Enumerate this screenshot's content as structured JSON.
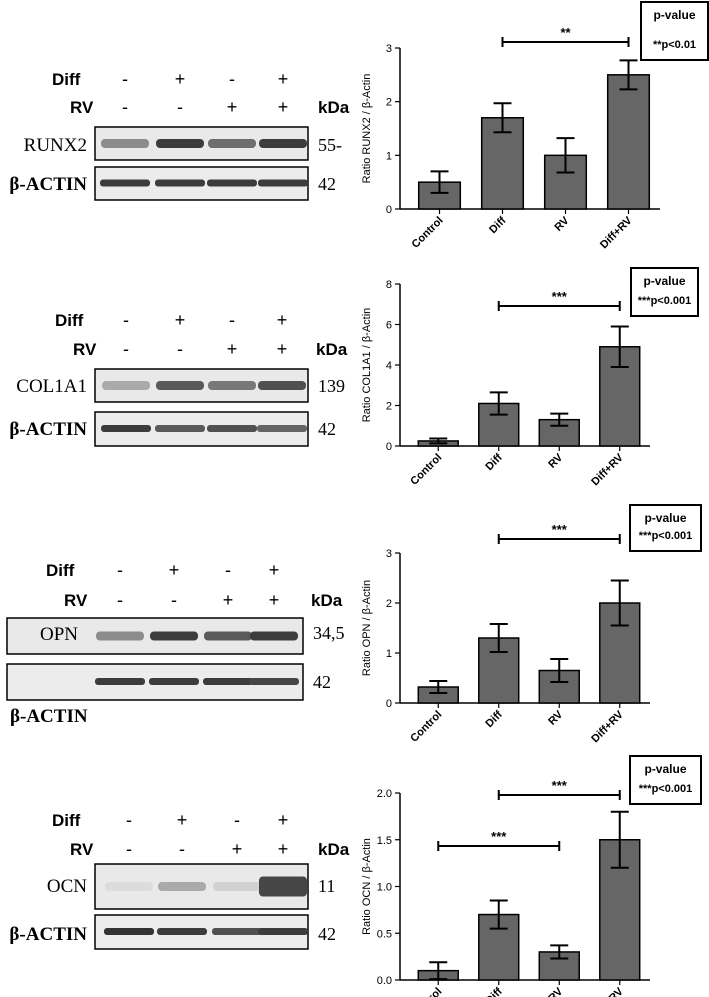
{
  "western_blots": [
    {
      "marker": "RUNX2",
      "marker_kda": "55-",
      "reference": "β-ACTIN",
      "reference_kda": "42",
      "row_diff_label": "Diff",
      "row_rv_label": "RV",
      "kda_label": "kDa",
      "diff_signs": [
        "-",
        "+",
        "-",
        "+"
      ],
      "rv_signs": [
        "-",
        "-",
        "+",
        "+"
      ],
      "marker_band_intensity": [
        0.45,
        0.85,
        0.6,
        0.85
      ],
      "reference_band_intensity": [
        0.85,
        0.85,
        0.85,
        0.85
      ]
    },
    {
      "marker": "COL1A1",
      "marker_kda": "139",
      "reference": "β-ACTIN",
      "reference_kda": "42",
      "row_diff_label": "Diff",
      "row_rv_label": "RV",
      "kda_label": "kDa",
      "diff_signs": [
        "-",
        "+",
        "-",
        "+"
      ],
      "rv_signs": [
        "-",
        "-",
        "+",
        "+"
      ],
      "marker_band_intensity": [
        0.3,
        0.7,
        0.55,
        0.75
      ],
      "reference_band_intensity": [
        0.85,
        0.7,
        0.75,
        0.65
      ]
    },
    {
      "marker": "OPN",
      "marker_kda": "34,5",
      "reference": "β-ACTIN",
      "reference_kda": "42",
      "row_diff_label": "Diff",
      "row_rv_label": "RV",
      "kda_label": "kDa",
      "diff_signs": [
        "-",
        "+",
        "-",
        "+"
      ],
      "rv_signs": [
        "-",
        "-",
        "+",
        "+"
      ],
      "marker_band_intensity": [
        0.45,
        0.85,
        0.7,
        0.85
      ],
      "reference_band_intensity": [
        0.85,
        0.85,
        0.85,
        0.8
      ]
    },
    {
      "marker": "OCN",
      "marker_kda": "11",
      "reference": "β-ACTIN",
      "reference_kda": "42",
      "row_diff_label": "Diff",
      "row_rv_label": "RV",
      "kda_label": "kDa",
      "diff_signs": [
        "-",
        "+",
        "-",
        "+"
      ],
      "rv_signs": [
        "-",
        "-",
        "+",
        "+"
      ],
      "marker_band_intensity": [
        0.05,
        0.3,
        0.1,
        0.8
      ],
      "reference_band_intensity": [
        0.9,
        0.85,
        0.75,
        0.85
      ]
    }
  ],
  "chart_data": [
    {
      "type": "bar",
      "categories": [
        "Control",
        "Diff",
        "RV",
        "Diff+RV"
      ],
      "values": [
        0.5,
        1.7,
        1.0,
        2.5
      ],
      "errors": [
        0.2,
        0.27,
        0.32,
        0.27
      ],
      "ylabel": "Ratio RUNX2 / β-Actin",
      "ylim": [
        0,
        3
      ],
      "yticks": [
        "0",
        "1",
        "2",
        "3"
      ],
      "significance": [
        {
          "from": 1,
          "to": 3,
          "label": "**"
        }
      ],
      "pvalue_title": "p-value",
      "pvalue_text": "**p<0.01",
      "bar_color": "#666666"
    },
    {
      "type": "bar",
      "categories": [
        "Control",
        "Diff",
        "RV",
        "Diff+RV"
      ],
      "values": [
        0.25,
        2.1,
        1.3,
        4.9
      ],
      "errors": [
        0.12,
        0.55,
        0.3,
        1.0
      ],
      "ylabel": "Ratio COL1A1 / β-Actin",
      "ylim": [
        0,
        8
      ],
      "yticks": [
        "0",
        "2",
        "4",
        "6",
        "8"
      ],
      "significance": [
        {
          "from": 1,
          "to": 3,
          "label": "***"
        }
      ],
      "pvalue_title": "p-value",
      "pvalue_text": "***p<0.001",
      "bar_color": "#666666"
    },
    {
      "type": "bar",
      "categories": [
        "Control",
        "Diff",
        "RV",
        "Diff+RV"
      ],
      "values": [
        0.32,
        1.3,
        0.65,
        2.0
      ],
      "errors": [
        0.12,
        0.28,
        0.23,
        0.45
      ],
      "ylabel": "Ratio OPN / β-Actin",
      "ylim": [
        0,
        3
      ],
      "yticks": [
        "0",
        "1",
        "2",
        "3"
      ],
      "significance": [
        {
          "from": 1,
          "to": 3,
          "label": "***"
        }
      ],
      "pvalue_title": "p-value",
      "pvalue_text": "***p<0.001",
      "bar_color": "#666666"
    },
    {
      "type": "bar",
      "categories": [
        "Control",
        "Diff",
        "RV",
        "Diff+RV"
      ],
      "values": [
        0.1,
        0.7,
        0.3,
        1.5
      ],
      "errors": [
        0.09,
        0.15,
        0.07,
        0.3
      ],
      "ylabel": "Ratio OCN / β-Actin",
      "ylim": [
        0,
        2.0
      ],
      "yticks": [
        "0.0",
        "0.5",
        "1.0",
        "1.5",
        "2.0"
      ],
      "significance": [
        {
          "from": 0,
          "to": 2,
          "label": "***"
        },
        {
          "from": 1,
          "to": 3,
          "label": "***"
        }
      ],
      "pvalue_title": "p-value",
      "pvalue_text": "***p<0.001",
      "bar_color": "#666666"
    }
  ]
}
